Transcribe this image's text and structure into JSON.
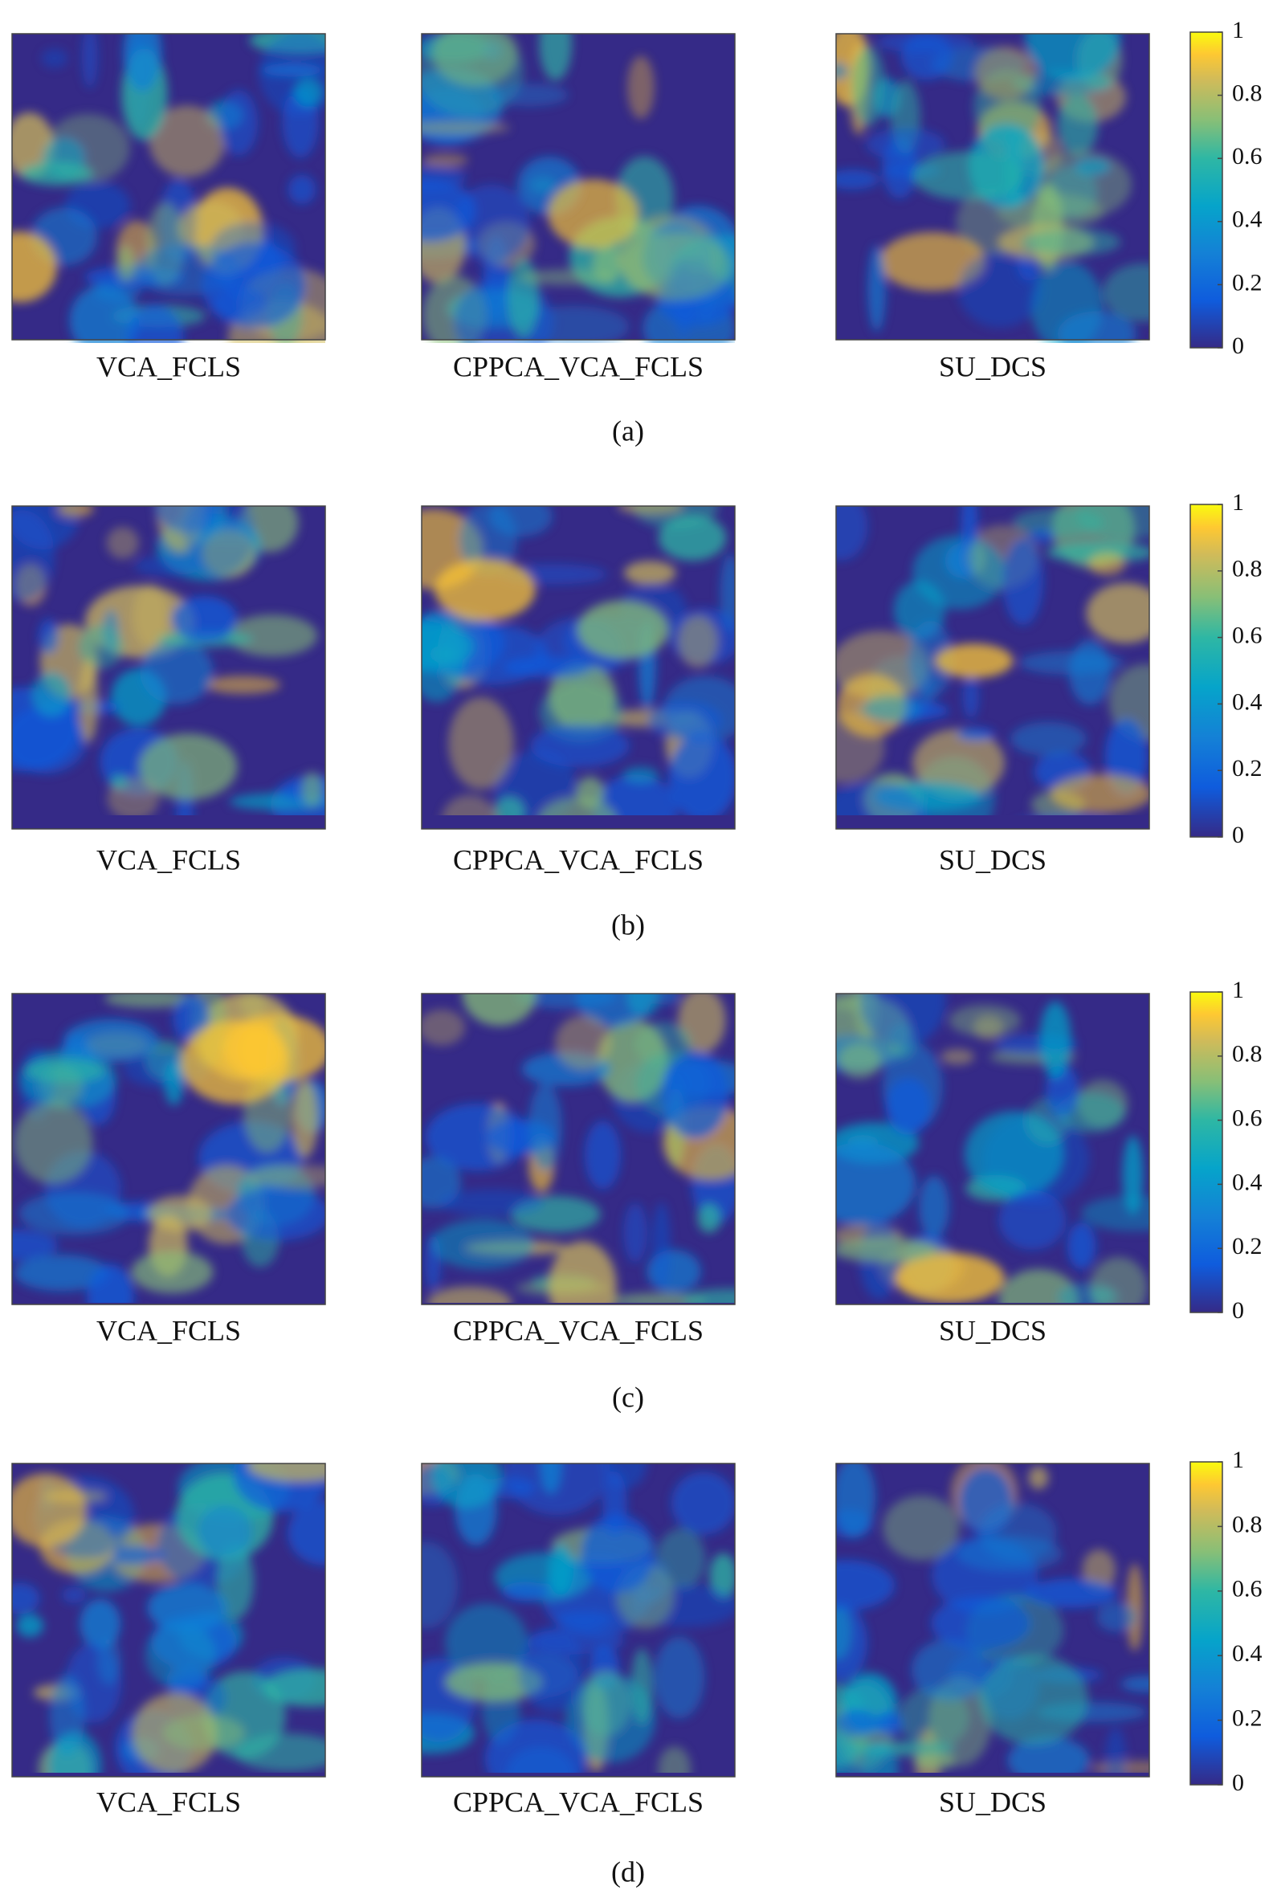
{
  "figure": {
    "rows": [
      {
        "caption": "(a)",
        "panels": [
          {
            "label": "VCA_FCLS"
          },
          {
            "label": "CPPCA_VCA_FCLS"
          },
          {
            "label": "SU_DCS"
          }
        ],
        "colorbar": {
          "lim": [
            0,
            1
          ],
          "ticks": [
            0,
            0.2,
            0.4,
            0.6,
            0.8,
            1
          ]
        }
      },
      {
        "caption": "(b)",
        "panels": [
          {
            "label": "VCA_FCLS"
          },
          {
            "label": "CPPCA_VCA_FCLS"
          },
          {
            "label": "SU_DCS"
          }
        ],
        "colorbar": {
          "lim": [
            0,
            1
          ],
          "ticks": [
            0,
            0.2,
            0.4,
            0.6,
            0.8,
            1
          ]
        }
      },
      {
        "caption": "(c)",
        "panels": [
          {
            "label": "VCA_FCLS"
          },
          {
            "label": "CPPCA_VCA_FCLS"
          },
          {
            "label": "SU_DCS"
          }
        ],
        "colorbar": {
          "lim": [
            0,
            1
          ],
          "ticks": [
            0,
            0.2,
            0.4,
            0.6,
            0.8,
            1
          ]
        }
      },
      {
        "caption": "(d)",
        "panels": [
          {
            "label": "VCA_FCLS"
          },
          {
            "label": "CPPCA_VCA_FCLS"
          },
          {
            "label": "SU_DCS"
          }
        ],
        "colorbar": {
          "lim": [
            0,
            1
          ],
          "ticks": [
            0,
            0.2,
            0.4,
            0.6,
            0.8,
            1
          ]
        }
      }
    ]
  }
}
